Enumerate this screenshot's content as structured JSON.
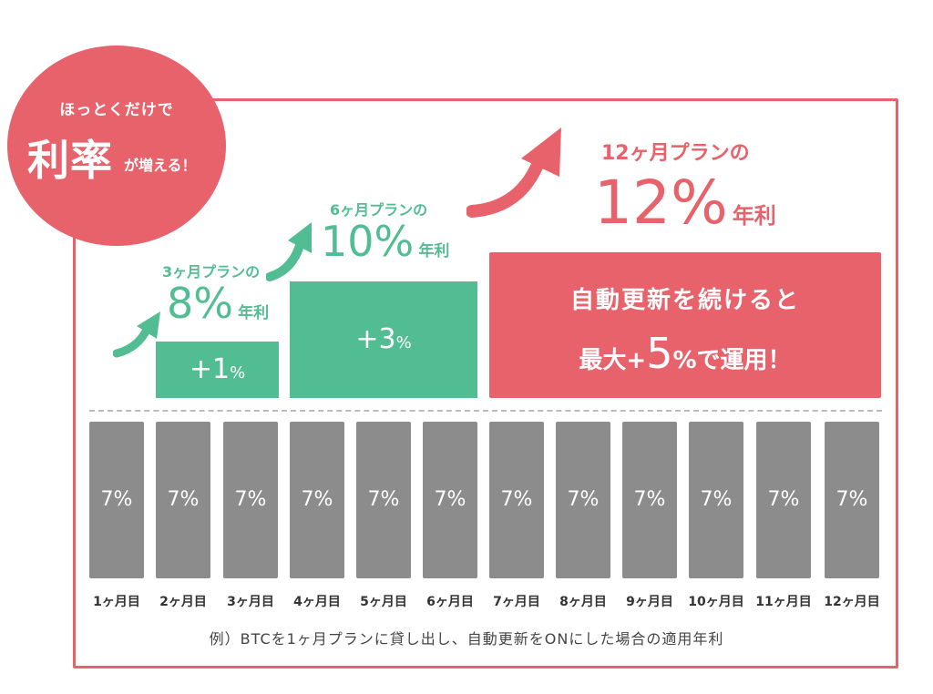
{
  "badge": {
    "line1": "ほっとくだけで",
    "big": "利率",
    "small": "が増える！"
  },
  "plan3": {
    "label": "3ヶ月プランの",
    "pct": "8%",
    "unit": "年利",
    "boost": "+1",
    "boost_unit": "%"
  },
  "plan6": {
    "label": "6ヶ月プランの",
    "pct": "10%",
    "unit": "年利",
    "boost": "+3",
    "boost_unit": "%"
  },
  "plan12": {
    "label": "12ヶ月プランの",
    "pct": "12%",
    "unit": "年利",
    "box_line1": "自動更新を続けると",
    "box_line2_pre": "最大+",
    "box_line2_num": "5",
    "box_line2_post": "%で運用！"
  },
  "bars": [
    "7%",
    "7%",
    "7%",
    "7%",
    "7%",
    "7%",
    "7%",
    "7%",
    "7%",
    "7%",
    "7%",
    "7%"
  ],
  "months": [
    "1ヶ月目",
    "2ヶ月目",
    "3ヶ月目",
    "4ヶ月目",
    "5ヶ月目",
    "6ヶ月目",
    "7ヶ月目",
    "8ヶ月目",
    "9ヶ月目",
    "10ヶ月目",
    "11ヶ月目",
    "12ヶ月目"
  ],
  "note": "例）BTCを1ヶ月プランに貸し出し、自動更新をONにした場合の適用年利",
  "colors": {
    "accent": "#e7626b",
    "green": "#52bd93",
    "bar": "#8c8c8c"
  }
}
